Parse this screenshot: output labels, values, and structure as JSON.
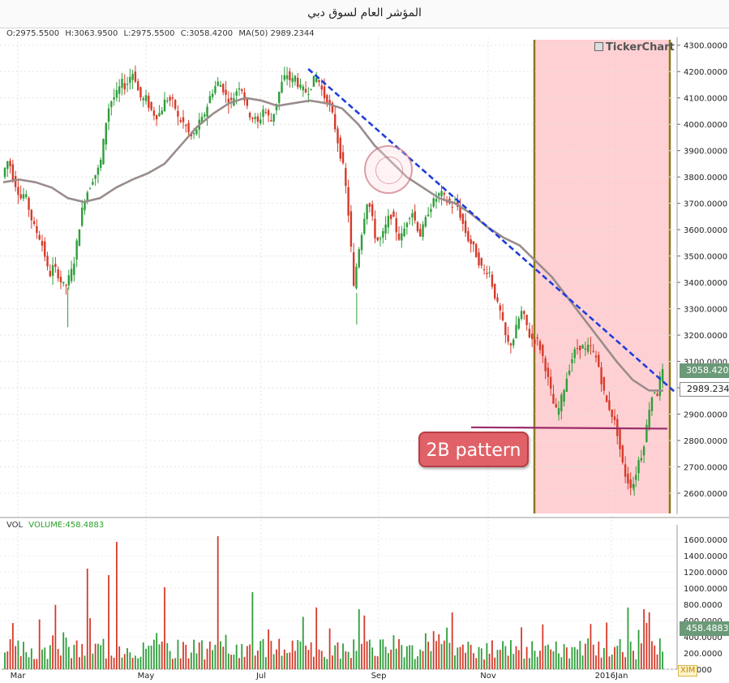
{
  "window": {
    "title": "المؤشر العام لسوق دبي"
  },
  "ohlc": {
    "open": "O:2975.5500",
    "high": "H:3063.9500",
    "low": "L:2975.5500",
    "close": "C:3058.4200",
    "ma": "MA(50) 2989.2344"
  },
  "volume_label": "VOL",
  "volume_value": "VOLUME:458.4883",
  "brand": "TickerChart",
  "annotation": "2B pattern",
  "price_tags": {
    "close": "3058.4200",
    "ma": "2989.2344",
    "volume": "458.4883"
  },
  "xim_label": "XIM",
  "colors": {
    "up": "#2e9e3a",
    "down": "#d63a2a",
    "ma_line": "#9a8c8c",
    "trendline": "#1f3ddb",
    "support": "#9a2c6a",
    "highlight": "#ffd0d3",
    "vertical_lines": "#8a7a1a"
  },
  "chart_data": [
    {
      "type": "line",
      "title": "المؤشر العام لسوق دبي",
      "y_ticks": [
        "2600.0000",
        "2700.0000",
        "2800.0000",
        "2900.0000",
        "3000.0000",
        "3100.0000",
        "3200.0000",
        "3300.0000",
        "3400.0000",
        "3500.0000",
        "3600.0000",
        "3700.0000",
        "3800.0000",
        "3900.0000",
        "4000.0000",
        "4100.0000",
        "4200.0000",
        "4300.0000"
      ],
      "x_ticks": [
        "Mar",
        "May",
        "Jul",
        "Sep",
        "Nov",
        "2016Jan"
      ],
      "ylim": [
        2520,
        4330
      ],
      "grid": true,
      "price_points": [
        [
          0,
          3780
        ],
        [
          5,
          3830
        ],
        [
          10,
          3870
        ],
        [
          15,
          3800
        ],
        [
          20,
          3760
        ],
        [
          25,
          3720
        ],
        [
          30,
          3740
        ],
        [
          35,
          3680
        ],
        [
          40,
          3620
        ],
        [
          45,
          3590
        ],
        [
          50,
          3560
        ],
        [
          55,
          3500
        ],
        [
          60,
          3420
        ],
        [
          65,
          3460
        ],
        [
          70,
          3440
        ],
        [
          75,
          3400
        ],
        [
          80,
          3380
        ],
        [
          85,
          3420
        ],
        [
          90,
          3460
        ],
        [
          95,
          3560
        ],
        [
          100,
          3660
        ],
        [
          105,
          3730
        ],
        [
          110,
          3760
        ],
        [
          115,
          3800
        ],
        [
          120,
          3820
        ],
        [
          125,
          3870
        ],
        [
          130,
          4000
        ],
        [
          135,
          4080
        ],
        [
          140,
          4100
        ],
        [
          145,
          4120
        ],
        [
          150,
          4160
        ],
        [
          155,
          4140
        ],
        [
          160,
          4180
        ],
        [
          165,
          4200
        ],
        [
          170,
          4130
        ],
        [
          175,
          4090
        ],
        [
          180,
          4100
        ],
        [
          185,
          4060
        ],
        [
          190,
          4040
        ],
        [
          195,
          4030
        ],
        [
          200,
          4060
        ],
        [
          205,
          4100
        ],
        [
          210,
          4090
        ],
        [
          215,
          4080
        ],
        [
          220,
          4020
        ],
        [
          225,
          4010
        ],
        [
          230,
          3990
        ],
        [
          235,
          3950
        ],
        [
          240,
          3960
        ],
        [
          245,
          4000
        ],
        [
          250,
          4020
        ],
        [
          255,
          4060
        ],
        [
          260,
          4110
        ],
        [
          265,
          4140
        ],
        [
          270,
          4160
        ],
        [
          275,
          4140
        ],
        [
          280,
          4100
        ],
        [
          285,
          4080
        ],
        [
          290,
          4110
        ],
        [
          295,
          4150
        ],
        [
          300,
          4130
        ],
        [
          305,
          4060
        ],
        [
          310,
          4030
        ],
        [
          315,
          4020
        ],
        [
          320,
          4000
        ],
        [
          325,
          4060
        ],
        [
          330,
          4040
        ],
        [
          335,
          4010
        ],
        [
          340,
          4060
        ],
        [
          345,
          4120
        ],
        [
          350,
          4170
        ],
        [
          355,
          4190
        ],
        [
          360,
          4160
        ],
        [
          365,
          4180
        ],
        [
          370,
          4140
        ],
        [
          375,
          4130
        ],
        [
          380,
          4120
        ],
        [
          385,
          4150
        ],
        [
          390,
          4180
        ],
        [
          395,
          4160
        ],
        [
          400,
          4110
        ],
        [
          405,
          4090
        ],
        [
          410,
          4050
        ],
        [
          415,
          3980
        ],
        [
          420,
          3900
        ],
        [
          425,
          3830
        ],
        [
          430,
          3700
        ],
        [
          435,
          3500
        ],
        [
          438,
          3360
        ],
        [
          442,
          3500
        ],
        [
          446,
          3560
        ],
        [
          450,
          3640
        ],
        [
          455,
          3720
        ],
        [
          460,
          3650
        ],
        [
          465,
          3560
        ],
        [
          470,
          3560
        ],
        [
          475,
          3590
        ],
        [
          480,
          3640
        ],
        [
          485,
          3660
        ],
        [
          490,
          3600
        ],
        [
          495,
          3560
        ],
        [
          500,
          3600
        ],
        [
          505,
          3650
        ],
        [
          510,
          3670
        ],
        [
          515,
          3620
        ],
        [
          520,
          3580
        ],
        [
          525,
          3620
        ],
        [
          530,
          3670
        ],
        [
          535,
          3700
        ],
        [
          540,
          3720
        ],
        [
          545,
          3740
        ],
        [
          550,
          3720
        ],
        [
          555,
          3700
        ],
        [
          560,
          3690
        ],
        [
          565,
          3700
        ],
        [
          570,
          3650
        ],
        [
          575,
          3600
        ],
        [
          580,
          3560
        ],
        [
          585,
          3540
        ],
        [
          590,
          3500
        ],
        [
          595,
          3460
        ],
        [
          600,
          3440
        ],
        [
          605,
          3450
        ],
        [
          610,
          3380
        ],
        [
          615,
          3320
        ],
        [
          620,
          3280
        ],
        [
          625,
          3200
        ],
        [
          630,
          3160
        ],
        [
          635,
          3180
        ],
        [
          640,
          3240
        ],
        [
          645,
          3290
        ],
        [
          650,
          3260
        ],
        [
          655,
          3200
        ],
        [
          660,
          3180
        ],
        [
          665,
          3180
        ],
        [
          670,
          3140
        ],
        [
          675,
          3080
        ],
        [
          680,
          3010
        ],
        [
          685,
          2940
        ],
        [
          690,
          2900
        ],
        [
          695,
          2960
        ],
        [
          700,
          3020
        ],
        [
          705,
          3080
        ],
        [
          710,
          3130
        ],
        [
          715,
          3150
        ],
        [
          720,
          3160
        ],
        [
          725,
          3140
        ],
        [
          730,
          3160
        ],
        [
          735,
          3130
        ],
        [
          740,
          3100
        ],
        [
          745,
          3020
        ],
        [
          750,
          2950
        ],
        [
          755,
          2920
        ],
        [
          760,
          2880
        ],
        [
          765,
          2820
        ],
        [
          770,
          2720
        ],
        [
          775,
          2660
        ],
        [
          780,
          2630
        ],
        [
          785,
          2640
        ],
        [
          790,
          2720
        ],
        [
          795,
          2750
        ],
        [
          800,
          2840
        ],
        [
          805,
          2950
        ],
        [
          810,
          2990
        ],
        [
          815,
          2975
        ],
        [
          818,
          3058
        ]
      ],
      "ma_points": [
        [
          0,
          3780
        ],
        [
          20,
          3790
        ],
        [
          40,
          3780
        ],
        [
          60,
          3760
        ],
        [
          80,
          3720
        ],
        [
          100,
          3705
        ],
        [
          120,
          3720
        ],
        [
          140,
          3760
        ],
        [
          160,
          3790
        ],
        [
          180,
          3815
        ],
        [
          200,
          3850
        ],
        [
          220,
          3920
        ],
        [
          240,
          3990
        ],
        [
          260,
          4040
        ],
        [
          280,
          4080
        ],
        [
          300,
          4100
        ],
        [
          320,
          4090
        ],
        [
          340,
          4070
        ],
        [
          360,
          4080
        ],
        [
          380,
          4090
        ],
        [
          400,
          4080
        ],
        [
          420,
          4060
        ],
        [
          440,
          4000
        ],
        [
          460,
          3920
        ],
        [
          480,
          3860
        ],
        [
          500,
          3800
        ],
        [
          520,
          3760
        ],
        [
          540,
          3720
        ],
        [
          560,
          3700
        ],
        [
          580,
          3660
        ],
        [
          600,
          3610
        ],
        [
          620,
          3570
        ],
        [
          640,
          3540
        ],
        [
          660,
          3480
        ],
        [
          680,
          3420
        ],
        [
          700,
          3340
        ],
        [
          720,
          3260
        ],
        [
          740,
          3180
        ],
        [
          760,
          3100
        ],
        [
          780,
          3030
        ],
        [
          800,
          2990
        ],
        [
          818,
          2989
        ]
      ],
      "volume_ylim": [
        0,
        1700
      ],
      "volume_ticks": [
        "0.0000",
        "200.0000",
        "400.0000",
        "600.0000",
        "800.0000",
        "1000.0000",
        "1200.0000",
        "1400.0000",
        "1600.0000"
      ],
      "volume_peaks": [
        [
          140,
          1570
        ],
        [
          265,
          1640
        ],
        [
          105,
          1240
        ],
        [
          130,
          1160
        ],
        [
          200,
          1010
        ],
        [
          310,
          950
        ],
        [
          440,
          740
        ],
        [
          555,
          700
        ],
        [
          800,
          700
        ]
      ]
    }
  ]
}
